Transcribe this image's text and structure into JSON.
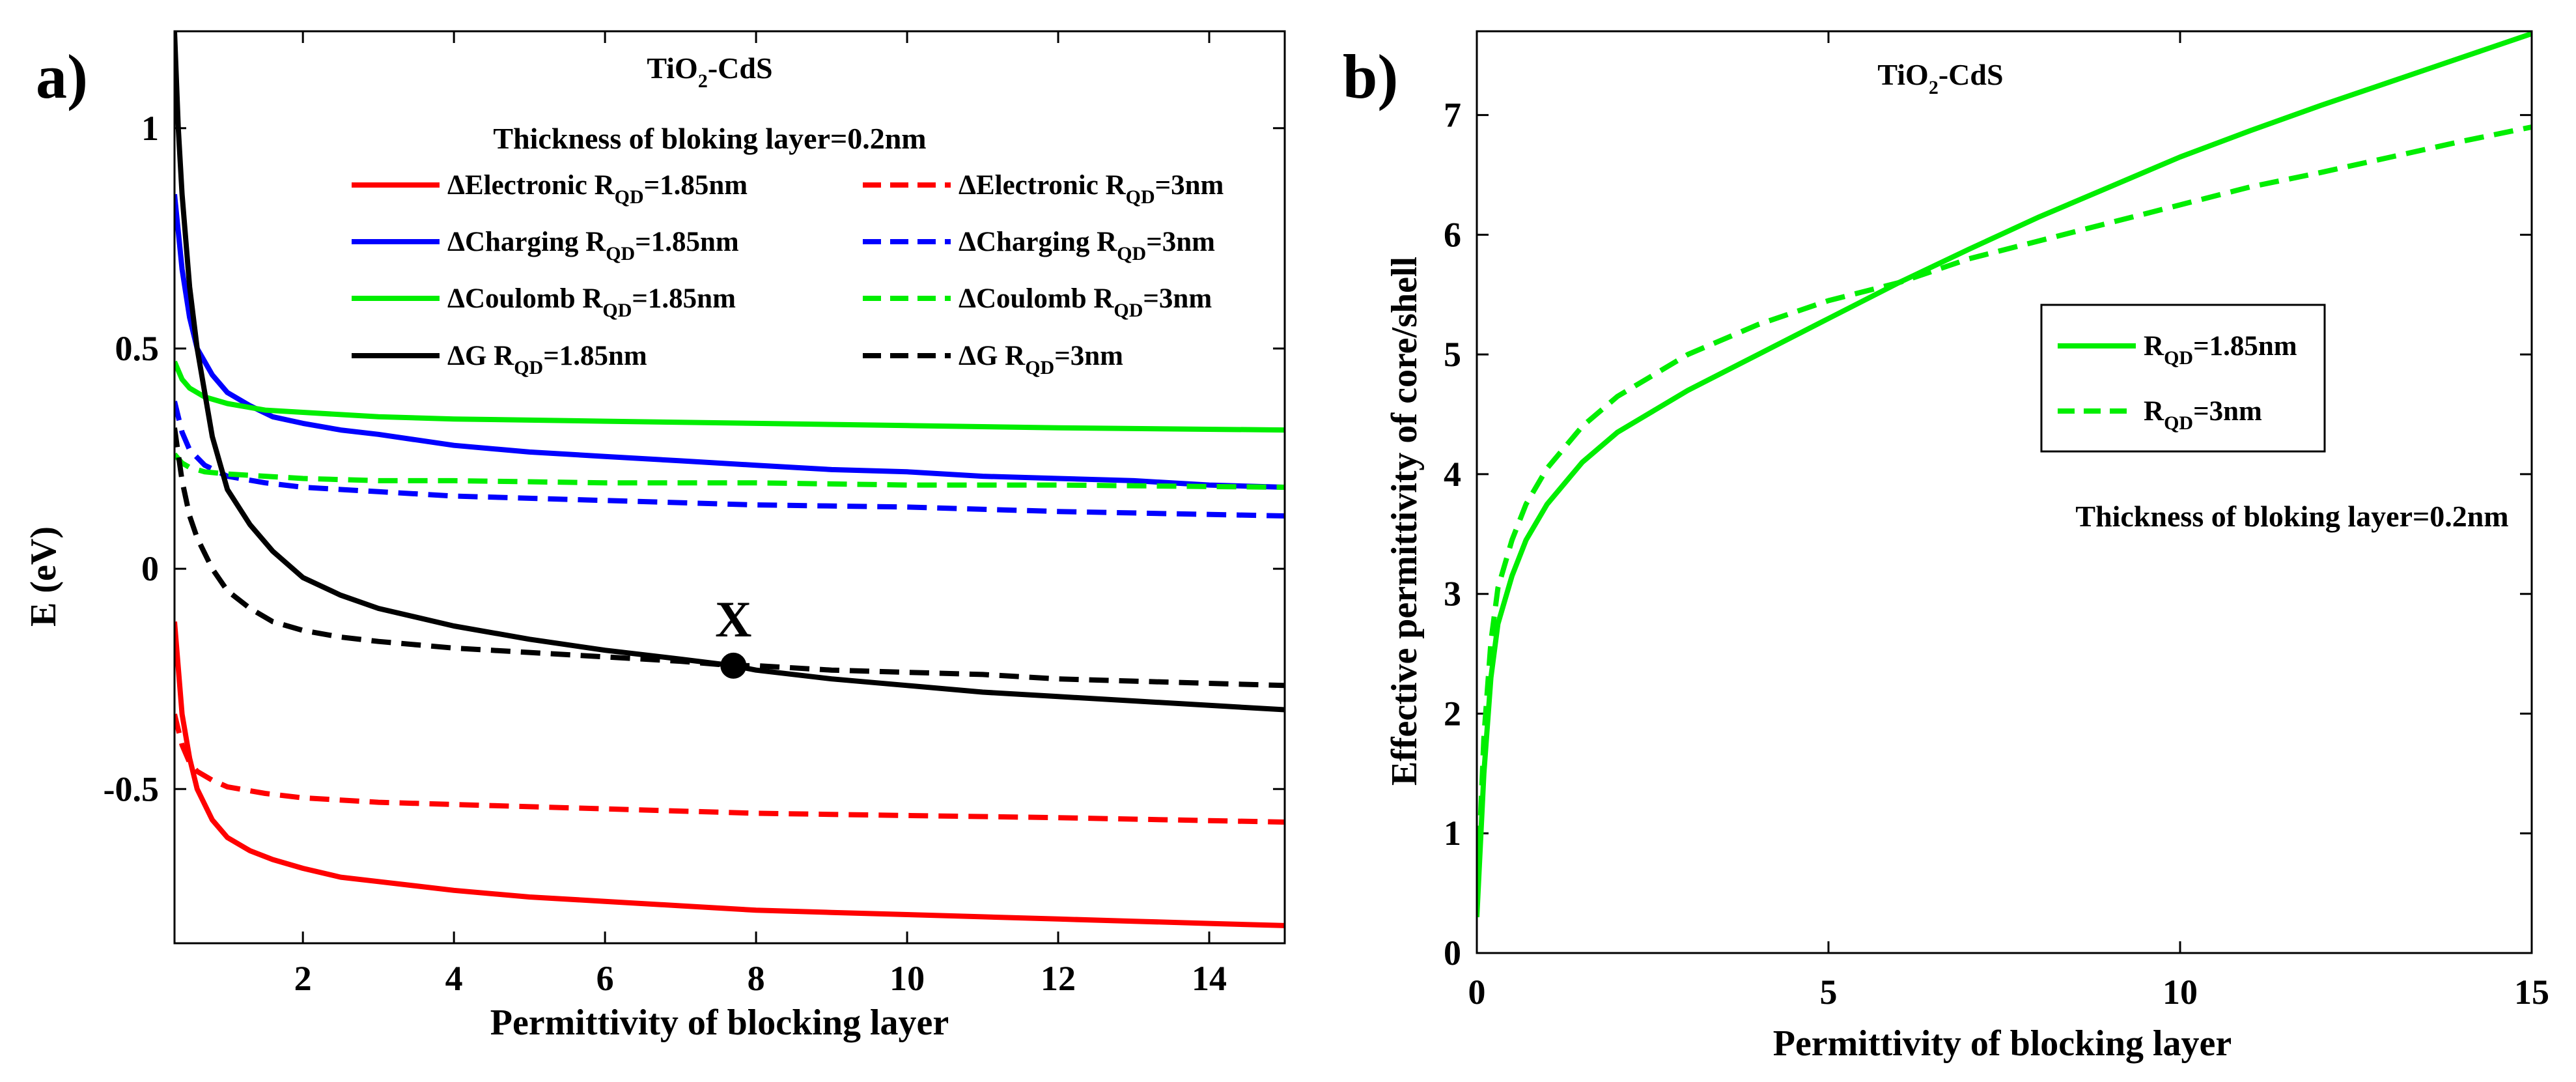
{
  "chart_data": [
    {
      "type": "line",
      "panel": "a)",
      "title": "TiO2-CdS",
      "title_main": "TiO",
      "title_sub": "2",
      "title_rest": "-CdS",
      "annotation": "Thickness  of bloking layer=0.2nm",
      "xlabel": "Permittivity of blocking layer",
      "ylabel": "E (eV)",
      "xlim": [
        0.3,
        15
      ],
      "ylim": [
        -0.85,
        1.22
      ],
      "x_ticks": [
        2,
        4,
        6,
        8,
        10,
        12,
        14
      ],
      "x_tick_labels": [
        "2",
        "4",
        "6",
        "8",
        "10",
        "12",
        "14"
      ],
      "y_ticks": [
        -0.5,
        0,
        0.5,
        1
      ],
      "y_tick_labels": [
        "-0.5",
        "0",
        "0.5",
        "1"
      ],
      "grid": false,
      "point": {
        "label": "X",
        "x": 7.7,
        "y": -0.22
      },
      "series": [
        {
          "name": "ΔElectronic R_QD=1.85nm",
          "label_main": "ΔElectronic R",
          "label_sub": "QD",
          "label_rest": "=1.85nm",
          "color": "#ff0000",
          "dash": "solid",
          "x": [
            0.3,
            0.4,
            0.5,
            0.6,
            0.8,
            1.0,
            1.3,
            1.6,
            2,
            2.5,
            3,
            4,
            5,
            6,
            7,
            8,
            9,
            10,
            11,
            12,
            13,
            14,
            15
          ],
          "y": [
            -0.12,
            -0.33,
            -0.43,
            -0.5,
            -0.57,
            -0.61,
            -0.64,
            -0.66,
            -0.68,
            -0.7,
            -0.71,
            -0.73,
            -0.745,
            -0.755,
            -0.765,
            -0.775,
            -0.78,
            -0.785,
            -0.79,
            -0.795,
            -0.8,
            -0.805,
            -0.81
          ]
        },
        {
          "name": "ΔElectronic R_QD=3nm",
          "label_main": "ΔElectronic R",
          "label_sub": "QD",
          "label_rest": "=3nm",
          "color": "#ff0000",
          "dash": "dashed",
          "x": [
            0.3,
            0.4,
            0.5,
            0.6,
            0.8,
            1.0,
            1.5,
            2,
            3,
            4,
            6,
            8,
            10,
            12,
            15
          ],
          "y": [
            -0.33,
            -0.4,
            -0.44,
            -0.46,
            -0.48,
            -0.495,
            -0.51,
            -0.52,
            -0.53,
            -0.535,
            -0.545,
            -0.555,
            -0.56,
            -0.565,
            -0.575
          ]
        },
        {
          "name": "ΔCharging R_QD=1.85nm",
          "label_main": "ΔCharging R",
          "label_sub": "QD",
          "label_rest": "=1.85nm",
          "color": "#0000ff",
          "dash": "solid",
          "x": [
            0.3,
            0.4,
            0.5,
            0.6,
            0.8,
            1.0,
            1.3,
            1.6,
            2,
            2.5,
            3,
            4,
            5,
            6,
            7,
            8,
            9,
            10,
            11,
            12,
            13,
            14,
            15
          ],
          "y": [
            0.85,
            0.68,
            0.57,
            0.5,
            0.44,
            0.4,
            0.37,
            0.345,
            0.33,
            0.315,
            0.305,
            0.28,
            0.265,
            0.255,
            0.245,
            0.235,
            0.225,
            0.22,
            0.21,
            0.205,
            0.2,
            0.19,
            0.185
          ]
        },
        {
          "name": "ΔCharging R_QD=3nm",
          "label_main": "ΔCharging R",
          "label_sub": "QD",
          "label_rest": "=3nm",
          "color": "#0000ff",
          "dash": "dashed",
          "x": [
            0.3,
            0.4,
            0.5,
            0.7,
            1.0,
            1.5,
            2,
            3,
            4,
            6,
            8,
            10,
            12,
            15
          ],
          "y": [
            0.38,
            0.31,
            0.27,
            0.235,
            0.21,
            0.195,
            0.185,
            0.175,
            0.165,
            0.155,
            0.145,
            0.14,
            0.13,
            0.12
          ]
        },
        {
          "name": "ΔCoulomb R_QD=1.85nm",
          "label_main": "ΔCoulomb  R",
          "label_sub": "QD",
          "label_rest": "=1.85nm",
          "color": "#00ee00",
          "dash": "solid",
          "x": [
            0.3,
            0.4,
            0.5,
            0.7,
            1.0,
            1.5,
            2,
            3,
            4,
            6,
            8,
            10,
            12,
            15
          ],
          "y": [
            0.47,
            0.43,
            0.41,
            0.39,
            0.375,
            0.36,
            0.355,
            0.345,
            0.34,
            0.335,
            0.33,
            0.325,
            0.32,
            0.315
          ]
        },
        {
          "name": "ΔCoulomb R_QD=3nm",
          "label_main": "ΔCoulomb  R",
          "label_sub": "QD",
          "label_rest": "=3nm",
          "color": "#00ee00",
          "dash": "dashed",
          "x": [
            0.3,
            0.4,
            0.5,
            0.7,
            1.0,
            1.5,
            2,
            3,
            4,
            6,
            8,
            10,
            12,
            15
          ],
          "y": [
            0.26,
            0.24,
            0.23,
            0.22,
            0.215,
            0.21,
            0.205,
            0.2,
            0.2,
            0.195,
            0.195,
            0.19,
            0.19,
            0.185
          ]
        },
        {
          "name": "ΔG R_QD=1.85nm",
          "label_main": "ΔG R",
          "label_sub": "QD",
          "label_rest": "=1.85nm",
          "color": "#000000",
          "dash": "solid",
          "x": [
            0.3,
            0.35,
            0.4,
            0.5,
            0.6,
            0.8,
            1.0,
            1.3,
            1.6,
            2,
            2.5,
            3,
            4,
            5,
            6,
            7,
            7.7,
            8,
            9,
            10,
            11,
            12,
            13,
            14,
            15
          ],
          "y": [
            1.22,
            1.0,
            0.85,
            0.64,
            0.5,
            0.3,
            0.18,
            0.1,
            0.04,
            -0.02,
            -0.06,
            -0.09,
            -0.13,
            -0.16,
            -0.185,
            -0.205,
            -0.22,
            -0.23,
            -0.25,
            -0.265,
            -0.28,
            -0.29,
            -0.3,
            -0.31,
            -0.32
          ]
        },
        {
          "name": "ΔG R_QD=3nm",
          "label_main": "ΔG R",
          "label_sub": "QD",
          "label_rest": "=3nm",
          "color": "#000000",
          "dash": "dashed",
          "x": [
            0.3,
            0.4,
            0.5,
            0.6,
            0.8,
            1.0,
            1.3,
            1.6,
            2,
            2.5,
            3,
            4,
            5,
            6,
            7,
            7.7,
            8,
            9,
            10,
            11,
            12,
            13,
            14,
            15
          ],
          "y": [
            0.32,
            0.2,
            0.12,
            0.07,
            0.0,
            -0.05,
            -0.09,
            -0.12,
            -0.14,
            -0.155,
            -0.165,
            -0.18,
            -0.19,
            -0.2,
            -0.21,
            -0.22,
            -0.22,
            -0.23,
            -0.235,
            -0.24,
            -0.25,
            -0.255,
            -0.26,
            -0.265
          ]
        }
      ]
    },
    {
      "type": "line",
      "panel": "b)",
      "title": "TiO2-CdS",
      "title_main": "TiO",
      "title_sub": "2",
      "title_rest": "-CdS",
      "annotation": "Thickness  of bloking layer=0.2nm",
      "xlabel": "Permittivity of blocking layer",
      "ylabel": "Effective permittivity of core/shell",
      "xlim": [
        0,
        15
      ],
      "ylim": [
        0,
        7.7
      ],
      "x_ticks": [
        0,
        5,
        10,
        15
      ],
      "x_tick_labels": [
        "0",
        "5",
        "10",
        "15"
      ],
      "y_ticks": [
        0,
        1,
        2,
        3,
        4,
        5,
        6,
        7
      ],
      "y_tick_labels": [
        "0",
        "1",
        "2",
        "3",
        "4",
        "5",
        "6",
        "7"
      ],
      "grid": false,
      "legend_position": "center-right",
      "series": [
        {
          "name": "R_QD=1.85nm",
          "label_main": "R",
          "label_sub": "QD",
          "label_rest": "=1.85nm",
          "color": "#00ee00",
          "dash": "solid",
          "x": [
            0,
            0.1,
            0.2,
            0.3,
            0.5,
            0.7,
            1.0,
            1.5,
            2,
            3,
            4,
            5,
            6,
            7,
            8,
            9,
            10,
            11,
            12,
            13,
            14,
            15
          ],
          "y": [
            0.3,
            1.5,
            2.3,
            2.75,
            3.15,
            3.45,
            3.75,
            4.1,
            4.35,
            4.7,
            5.0,
            5.3,
            5.6,
            5.88,
            6.15,
            6.4,
            6.65,
            6.87,
            7.08,
            7.28,
            7.48,
            7.68
          ]
        },
        {
          "name": "R_QD=3nm",
          "label_main": "R",
          "label_sub": "QD",
          "label_rest": "=3nm",
          "color": "#00ee00",
          "dash": "dashed",
          "x": [
            0,
            0.1,
            0.2,
            0.3,
            0.5,
            0.7,
            1.0,
            1.5,
            2,
            3,
            4,
            5,
            6,
            7,
            8,
            9,
            10,
            11,
            12,
            13,
            14,
            15
          ],
          "y": [
            0.4,
            1.8,
            2.6,
            3.05,
            3.45,
            3.75,
            4.05,
            4.4,
            4.65,
            5.0,
            5.25,
            5.45,
            5.6,
            5.8,
            5.95,
            6.1,
            6.25,
            6.4,
            6.52,
            6.65,
            6.78,
            6.9
          ]
        }
      ]
    }
  ]
}
